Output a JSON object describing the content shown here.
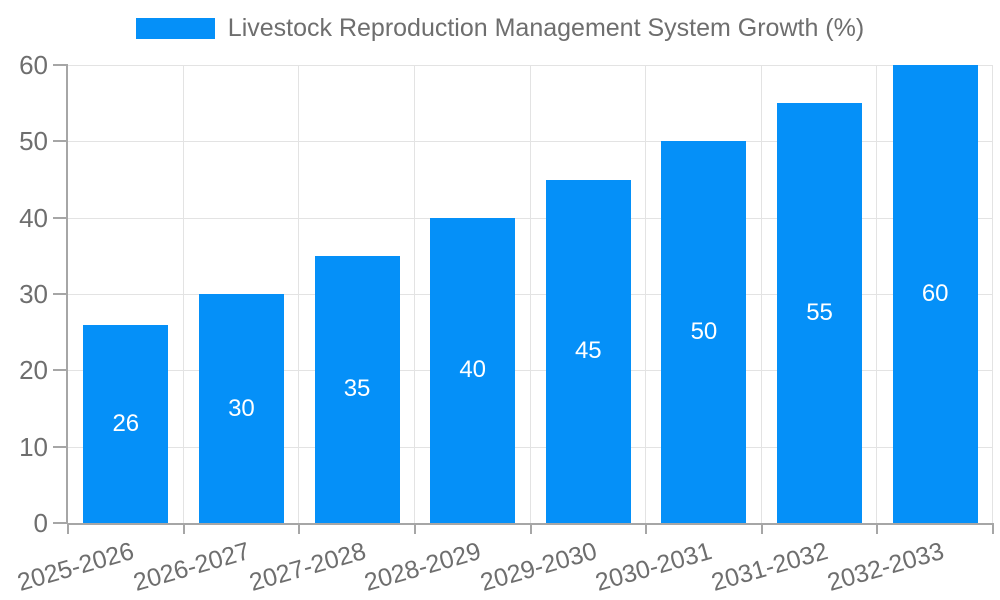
{
  "chart_data": {
    "type": "bar",
    "title": "Livestock Reproduction Management System Growth (%)",
    "legend": [
      "Livestock Reproduction Management System Growth (%)"
    ],
    "legend_position": "top-center",
    "categories": [
      "2025-2026",
      "2026-2027",
      "2027-2028",
      "2028-2029",
      "2029-2030",
      "2030-2031",
      "2031-2032",
      "2032-2033"
    ],
    "values": [
      26,
      30,
      35,
      40,
      45,
      50,
      55,
      60
    ],
    "bar_value_labels": [
      "26",
      "30",
      "35",
      "40",
      "45",
      "50",
      "55",
      "60"
    ],
    "xlabel": "",
    "ylabel": "",
    "ylim": [
      0,
      60
    ],
    "yticks": [
      0,
      10,
      20,
      30,
      40,
      50,
      60
    ],
    "grid": true,
    "colors": {
      "bar": "#0590f8",
      "bar_value_text": "#ffffff",
      "axis_text": "#6e6e6e",
      "gridline": "#e3e3e3",
      "axis_line": "#a6a6a6",
      "background": "#ffffff"
    }
  }
}
